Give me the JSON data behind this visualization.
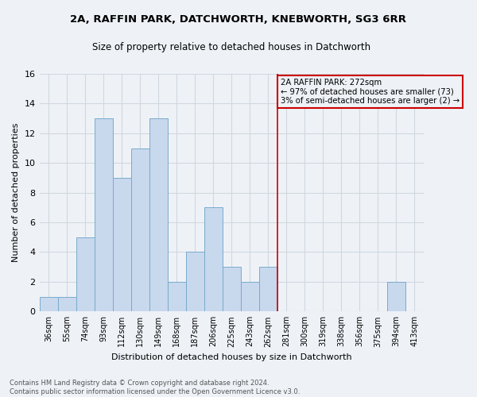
{
  "title1": "2A, RAFFIN PARK, DATCHWORTH, KNEBWORTH, SG3 6RR",
  "title2": "Size of property relative to detached houses in Datchworth",
  "xlabel": "Distribution of detached houses by size in Datchworth",
  "ylabel": "Number of detached properties",
  "categories": [
    "36sqm",
    "55sqm",
    "74sqm",
    "93sqm",
    "112sqm",
    "130sqm",
    "149sqm",
    "168sqm",
    "187sqm",
    "206sqm",
    "225sqm",
    "243sqm",
    "262sqm",
    "281sqm",
    "300sqm",
    "319sqm",
    "338sqm",
    "356sqm",
    "375sqm",
    "394sqm",
    "413sqm"
  ],
  "values": [
    1,
    1,
    5,
    13,
    9,
    11,
    13,
    2,
    4,
    7,
    3,
    2,
    3,
    0,
    0,
    0,
    0,
    0,
    0,
    2,
    0
  ],
  "bar_color": "#c8d8ed",
  "bar_edge_color": "#7aabcc",
  "grid_color": "#d0d8e0",
  "vline_color": "#cc0000",
  "annotation_text": "2A RAFFIN PARK: 272sqm\n← 97% of detached houses are smaller (73)\n3% of semi-detached houses are larger (2) →",
  "annotation_box_color": "#cc0000",
  "ylim": [
    0,
    16
  ],
  "yticks": [
    0,
    2,
    4,
    6,
    8,
    10,
    12,
    14,
    16
  ],
  "footer1": "Contains HM Land Registry data © Crown copyright and database right 2024.",
  "footer2": "Contains public sector information licensed under the Open Government Licence v3.0.",
  "bg_color": "#eef2f7"
}
